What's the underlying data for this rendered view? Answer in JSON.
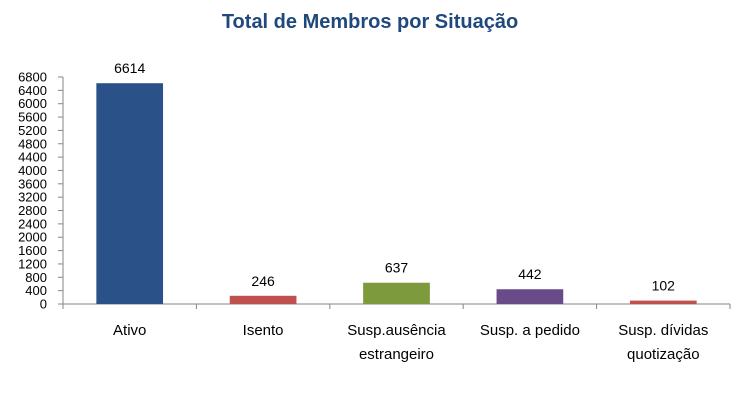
{
  "chart_data": {
    "type": "bar",
    "title": "Total de Membros por Situação",
    "categories": [
      [
        "Ativo"
      ],
      [
        "Isento"
      ],
      [
        "Susp.ausência",
        "estrangeiro"
      ],
      [
        "Susp. a pedido"
      ],
      [
        "Susp. dívidas",
        "quotização"
      ]
    ],
    "values": [
      6614,
      246,
      637,
      442,
      102
    ],
    "data_labels": [
      "6614",
      "246",
      "637",
      "442",
      "102"
    ],
    "bar_colors": [
      "#2b5189",
      "#c0504d",
      "#7d9a3c",
      "#6a4b8a",
      "#c0504d"
    ],
    "ylim": [
      0,
      6800
    ],
    "yticks": [
      0,
      400,
      800,
      1200,
      1600,
      2000,
      2400,
      2800,
      3200,
      3600,
      4000,
      4400,
      4800,
      5200,
      5600,
      6000,
      6400,
      6800
    ],
    "grid": false,
    "legend": "none",
    "title_color": "#1f497d"
  }
}
